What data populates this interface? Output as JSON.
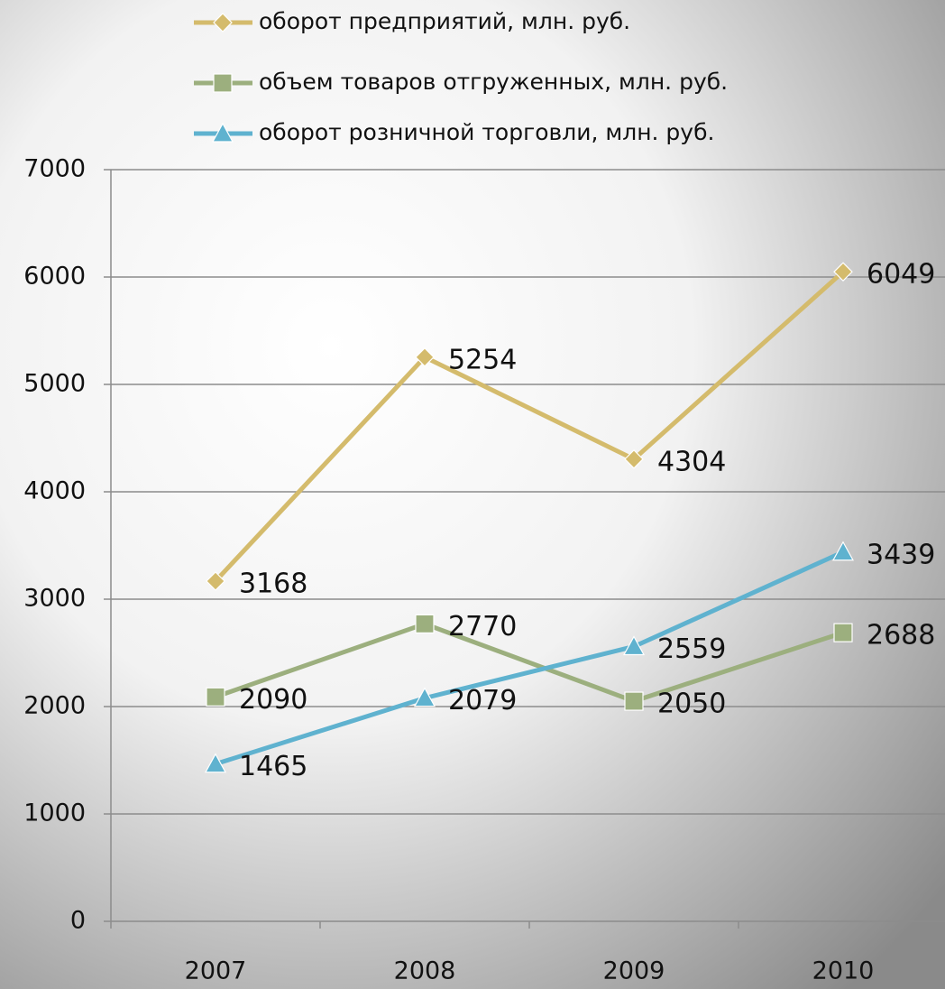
{
  "chart_data": {
    "type": "line",
    "categories": [
      "2007",
      "2008",
      "2009",
      "2010"
    ],
    "series": [
      {
        "name": "оборот предприятий,  млн. руб.",
        "color": "#d4bb6c",
        "marker": "diamond",
        "values": [
          3168,
          5254,
          4304,
          6049
        ]
      },
      {
        "name": "объем товаров отгруженных,  млн. руб.",
        "color": "#9caf7e",
        "marker": "square",
        "values": [
          2090,
          2770,
          2050,
          2688
        ]
      },
      {
        "name": "оборот розничной торговли, млн. руб.",
        "color": "#5fb2cf",
        "marker": "triangle",
        "values": [
          1465,
          2079,
          2559,
          3439
        ]
      }
    ],
    "ylim": [
      0,
      7000
    ],
    "yticks": [
      0,
      1000,
      2000,
      3000,
      4000,
      5000,
      6000,
      7000
    ],
    "grid": true,
    "legend": "top"
  }
}
